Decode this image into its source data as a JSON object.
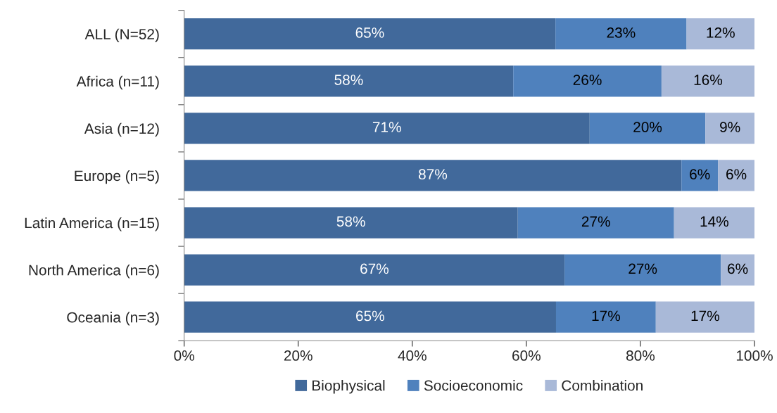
{
  "chart_data": {
    "type": "bar",
    "orientation": "horizontal",
    "stacked": true,
    "categories": [
      "ALL (N=52)",
      "Africa (n=11)",
      "Asia (n=12)",
      "Europe (n=5)",
      "Latin America (n=15)",
      "North America (n=6)",
      "Oceania (n=3)"
    ],
    "series": [
      {
        "name": "Biophysical",
        "color": "#41699b",
        "values": [
          65.1,
          57.7,
          71.1,
          87.2,
          58.5,
          66.7,
          65.2
        ],
        "value_labels": [
          "65%",
          "58%",
          "71%",
          "87%",
          "58%",
          "67%",
          "65%"
        ]
      },
      {
        "name": "Socioeconomic",
        "color": "#4f81bd",
        "values": [
          23.0,
          26.0,
          20.3,
          6.4,
          27.4,
          27.4,
          17.5
        ],
        "value_labels": [
          "23%",
          "26%",
          "20%",
          "6%",
          "27%",
          "27%",
          "17%"
        ]
      },
      {
        "name": "Combination",
        "color": "#a9b9d8",
        "values": [
          11.9,
          16.3,
          8.6,
          6.4,
          14.1,
          5.9,
          17.3
        ],
        "value_labels": [
          "12%",
          "16%",
          "9%",
          "6%",
          "14%",
          "6%",
          "17%"
        ]
      }
    ],
    "xlim": [
      0,
      100
    ],
    "xticks": [
      {
        "value": 0,
        "label": "0%"
      },
      {
        "value": 20,
        "label": "20%"
      },
      {
        "value": 40,
        "label": "40%"
      },
      {
        "value": 60,
        "label": "60%"
      },
      {
        "value": 80,
        "label": "80%"
      },
      {
        "value": 100,
        "label": "100%"
      }
    ],
    "grid": false,
    "legend": "bottom"
  }
}
